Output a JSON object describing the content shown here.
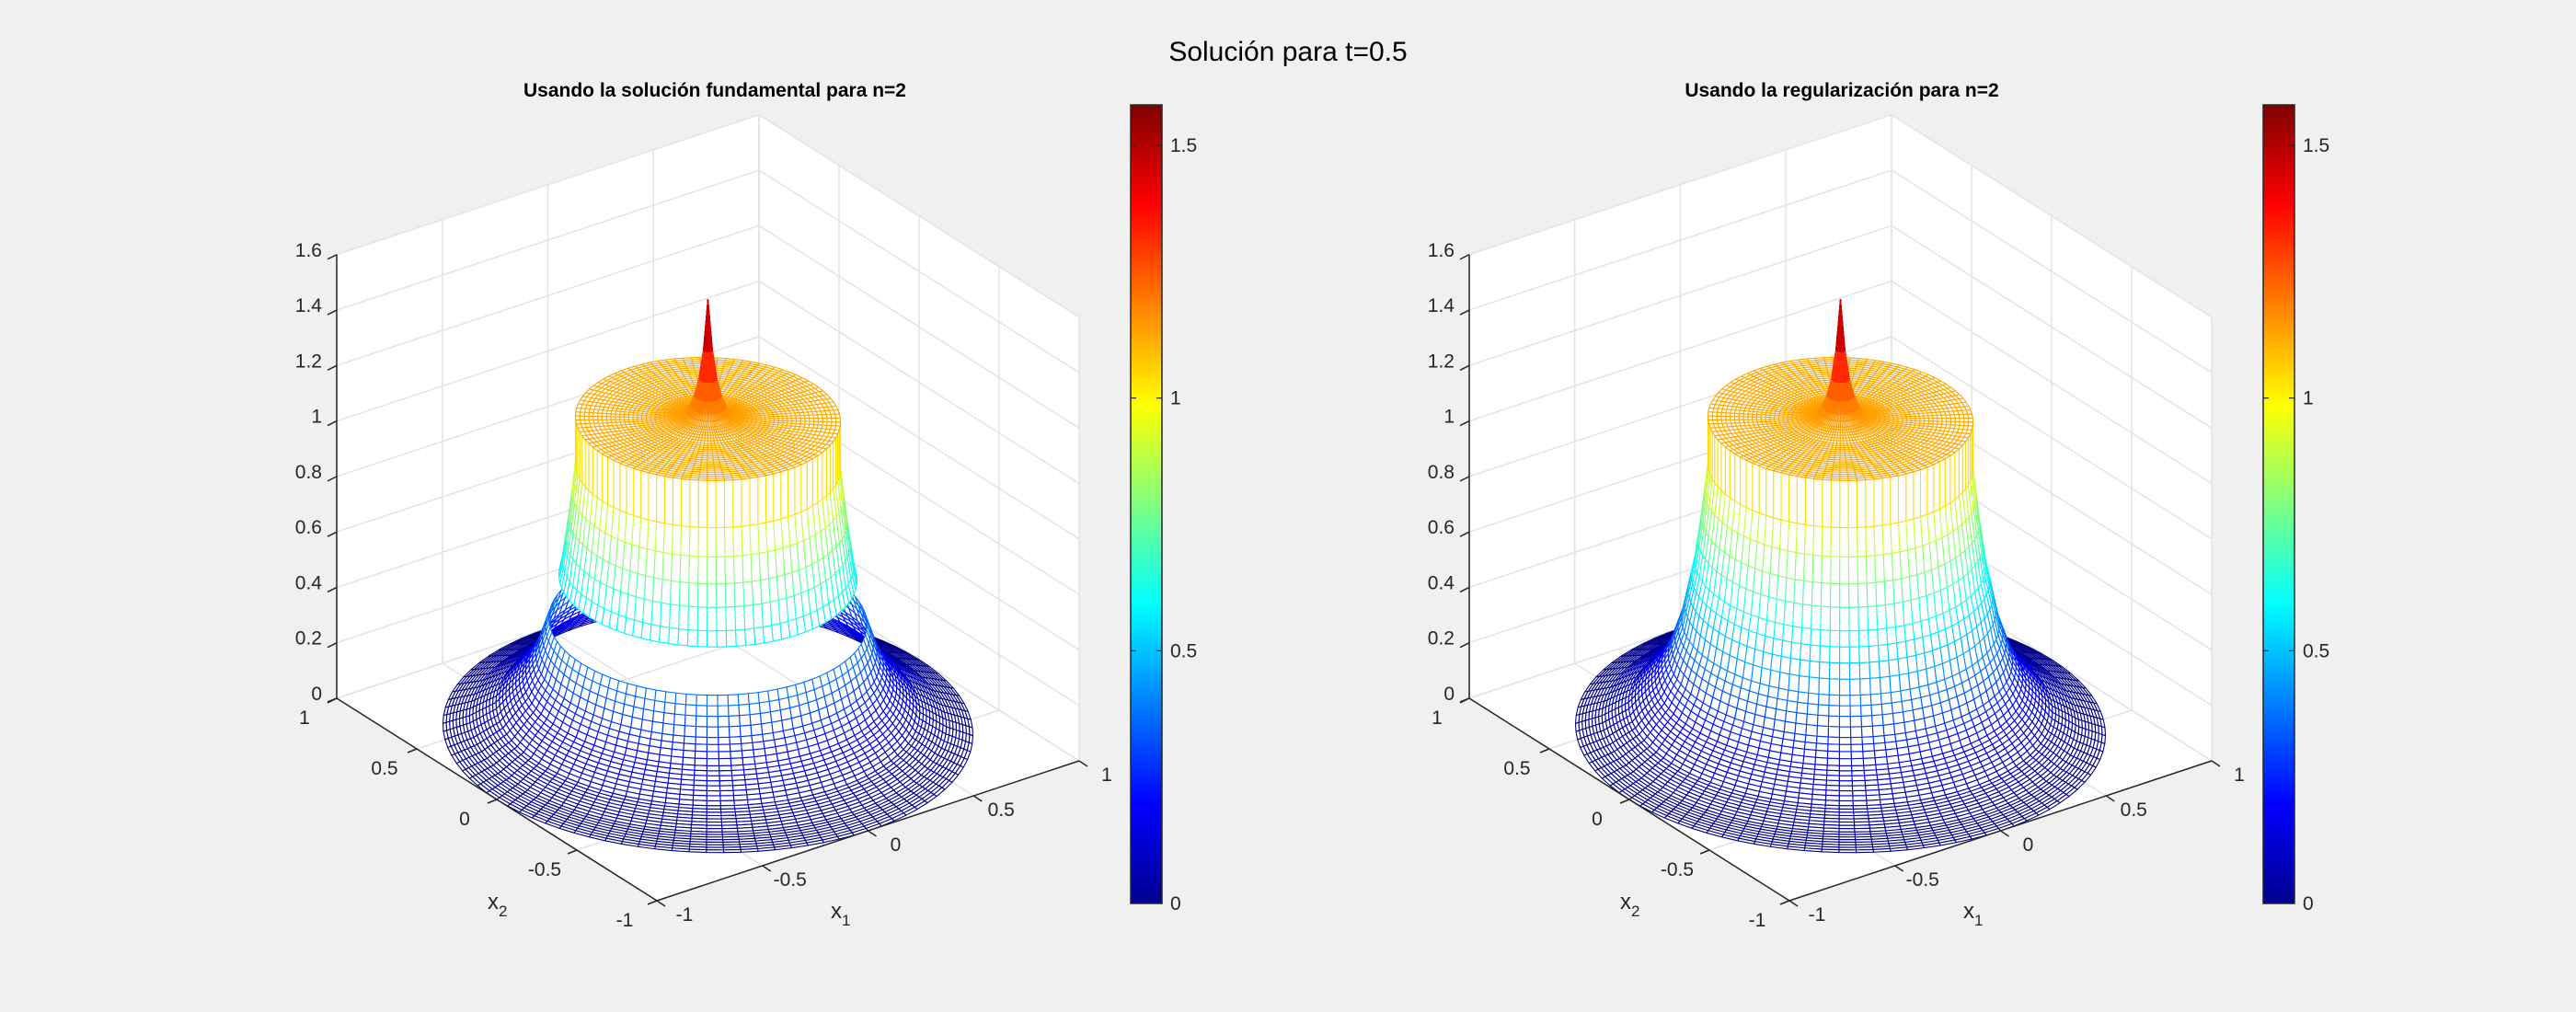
{
  "figure": {
    "title": "Solución para t=0.5",
    "background": "#f0f0f0"
  },
  "chart_data": [
    {
      "type": "surface",
      "title": "Usando la solución fundamental para n=2",
      "xlabel": "x",
      "xlabel_sub": "1",
      "ylabel": "x",
      "ylabel_sub": "2",
      "xlim": [
        -1,
        1
      ],
      "ylim": [
        -1,
        1
      ],
      "zlim": [
        0,
        1.6
      ],
      "xticks": [
        "-1",
        "-0.5",
        "0",
        "0.5",
        "1"
      ],
      "yticks": [
        "-1",
        "-0.5",
        "0",
        "0.5",
        "1"
      ],
      "zticks": [
        "0",
        "0.2",
        "0.4",
        "0.6",
        "0.8",
        "1",
        "1.2",
        "1.4",
        "1.6"
      ],
      "colormap": "jet",
      "clim": [
        0,
        1.58
      ],
      "colorbar_ticks": [
        "0",
        "0.5",
        "1",
        "1.5"
      ],
      "grid": true,
      "radial_profile": {
        "inner": {
          "r": [
            0,
            0.01,
            0.02,
            0.04,
            0.07,
            0.1,
            0.2,
            0.3,
            0.4,
            0.5
          ],
          "z": [
            1.55,
            1.43,
            1.34,
            1.23,
            1.16,
            1.135,
            1.12,
            1.12,
            1.12,
            1.12
          ]
        },
        "outer": {
          "r": [
            0.5,
            0.52,
            0.55,
            0.6,
            0.65,
            0.7,
            0.8,
            0.9,
            1.0
          ],
          "z": [
            0.95,
            0.79,
            0.6,
            0.39,
            0.26,
            0.18,
            0.08,
            0.03,
            0
          ]
        }
      },
      "gap_r": [
        0.56,
        0.59
      ]
    },
    {
      "type": "surface",
      "title": "Usando la regularización para n=2",
      "xlabel": "x",
      "xlabel_sub": "1",
      "ylabel": "x",
      "ylabel_sub": "2",
      "xlim": [
        -1,
        1
      ],
      "ylim": [
        -1,
        1
      ],
      "zlim": [
        0,
        1.6
      ],
      "xticks": [
        "-1",
        "-0.5",
        "0",
        "0.5",
        "1"
      ],
      "yticks": [
        "-1",
        "-0.5",
        "0",
        "0.5",
        "1"
      ],
      "zticks": [
        "0",
        "0.2",
        "0.4",
        "0.6",
        "0.8",
        "1",
        "1.2",
        "1.4",
        "1.6"
      ],
      "colormap": "jet",
      "clim": [
        0,
        1.58
      ],
      "colorbar_ticks": [
        "0",
        "0.5",
        "1",
        "1.5"
      ],
      "grid": true,
      "radial_profile": {
        "inner": {
          "r": [
            0,
            0.01,
            0.02,
            0.04,
            0.07,
            0.1,
            0.2,
            0.3,
            0.4,
            0.5
          ],
          "z": [
            1.55,
            1.43,
            1.34,
            1.23,
            1.16,
            1.135,
            1.12,
            1.12,
            1.12,
            1.12
          ]
        },
        "outer": {
          "r": [
            0.5,
            0.52,
            0.55,
            0.6,
            0.65,
            0.7,
            0.8,
            0.9,
            1.0
          ],
          "z": [
            0.95,
            0.79,
            0.6,
            0.39,
            0.26,
            0.18,
            0.08,
            0.03,
            0
          ]
        }
      },
      "gap_r": null
    }
  ]
}
